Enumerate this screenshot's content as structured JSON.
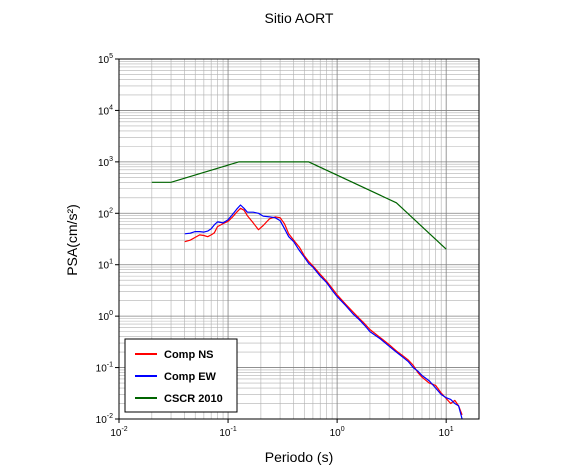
{
  "chart_data": {
    "type": "line",
    "title": "Sitio AORT",
    "xlabel": "Periodo (s)",
    "ylabel": "PSA(cm/s²)",
    "x_scale": "log",
    "y_scale": "log",
    "xlim": [
      0.01,
      20
    ],
    "ylim": [
      0.01,
      100000
    ],
    "grid": true,
    "legend_position": "bottom-left",
    "x_ticks": [
      {
        "base": "10",
        "exp": "-2",
        "value": 0.01
      },
      {
        "base": "10",
        "exp": "-1",
        "value": 0.1
      },
      {
        "base": "10",
        "exp": "0",
        "value": 1
      },
      {
        "base": "10",
        "exp": "1",
        "value": 10
      }
    ],
    "y_ticks": [
      {
        "base": "10",
        "exp": "-2",
        "value": 0.01
      },
      {
        "base": "10",
        "exp": "-1",
        "value": 0.1
      },
      {
        "base": "10",
        "exp": "0",
        "value": 1
      },
      {
        "base": "10",
        "exp": "1",
        "value": 10
      },
      {
        "base": "10",
        "exp": "2",
        "value": 100
      },
      {
        "base": "10",
        "exp": "3",
        "value": 1000
      },
      {
        "base": "10",
        "exp": "4",
        "value": 10000
      },
      {
        "base": "10",
        "exp": "5",
        "value": 100000
      }
    ],
    "series": [
      {
        "name": "Comp NS",
        "color": "#ff0000",
        "x": [
          0.04,
          0.045,
          0.05,
          0.055,
          0.06,
          0.065,
          0.07,
          0.075,
          0.08,
          0.09,
          0.1,
          0.11,
          0.12,
          0.13,
          0.14,
          0.15,
          0.17,
          0.19,
          0.21,
          0.24,
          0.27,
          0.3,
          0.33,
          0.36,
          0.4,
          0.45,
          0.5,
          0.55,
          0.6,
          0.7,
          0.8,
          0.9,
          1.0,
          1.2,
          1.4,
          1.6,
          1.8,
          2.0,
          2.5,
          3.0,
          3.5,
          4.0,
          4.5,
          5.0,
          5.5,
          6.0,
          7.0,
          8.0,
          9.0,
          10.0,
          11.0,
          12.0,
          13.0,
          14.0
        ],
        "values": [
          28,
          30,
          34,
          38,
          37,
          35,
          38,
          42,
          55,
          63,
          70,
          85,
          105,
          125,
          115,
          90,
          65,
          48,
          58,
          78,
          85,
          82,
          62,
          40,
          30,
          22,
          15,
          11.5,
          9.5,
          6.5,
          4.8,
          3.5,
          2.6,
          1.7,
          1.2,
          0.9,
          0.7,
          0.55,
          0.38,
          0.28,
          0.21,
          0.17,
          0.14,
          0.11,
          0.08,
          0.065,
          0.05,
          0.045,
          0.032,
          0.025,
          0.02,
          0.023,
          0.018,
          0.012
        ]
      },
      {
        "name": "Comp EW",
        "color": "#0000ff",
        "x": [
          0.04,
          0.045,
          0.05,
          0.055,
          0.06,
          0.065,
          0.07,
          0.075,
          0.08,
          0.09,
          0.1,
          0.11,
          0.12,
          0.13,
          0.14,
          0.15,
          0.17,
          0.19,
          0.21,
          0.24,
          0.27,
          0.3,
          0.33,
          0.36,
          0.4,
          0.45,
          0.5,
          0.55,
          0.6,
          0.7,
          0.8,
          0.9,
          1.0,
          1.2,
          1.4,
          1.6,
          1.8,
          2.0,
          2.5,
          3.0,
          3.5,
          4.0,
          4.5,
          5.0,
          5.5,
          6.0,
          7.0,
          8.0,
          9.0,
          10.0,
          11.0,
          12.0,
          13.0,
          14.0
        ],
        "values": [
          40,
          41,
          44,
          44,
          43,
          45,
          50,
          60,
          68,
          65,
          75,
          95,
          120,
          145,
          125,
          105,
          105,
          100,
          88,
          85,
          82,
          72,
          50,
          35,
          28,
          19,
          14,
          10.5,
          9,
          6,
          4.5,
          3.2,
          2.4,
          1.6,
          1.1,
          0.85,
          0.65,
          0.5,
          0.36,
          0.26,
          0.2,
          0.16,
          0.13,
          0.1,
          0.085,
          0.07,
          0.055,
          0.04,
          0.03,
          0.026,
          0.024,
          0.02,
          0.018,
          0.01
        ]
      },
      {
        "name": "CSCR 2010",
        "color": "#006400",
        "x": [
          0.02,
          0.03,
          0.125,
          0.55,
          3.5,
          10
        ],
        "values": [
          400,
          400,
          1000,
          1000,
          160,
          20
        ]
      }
    ]
  }
}
